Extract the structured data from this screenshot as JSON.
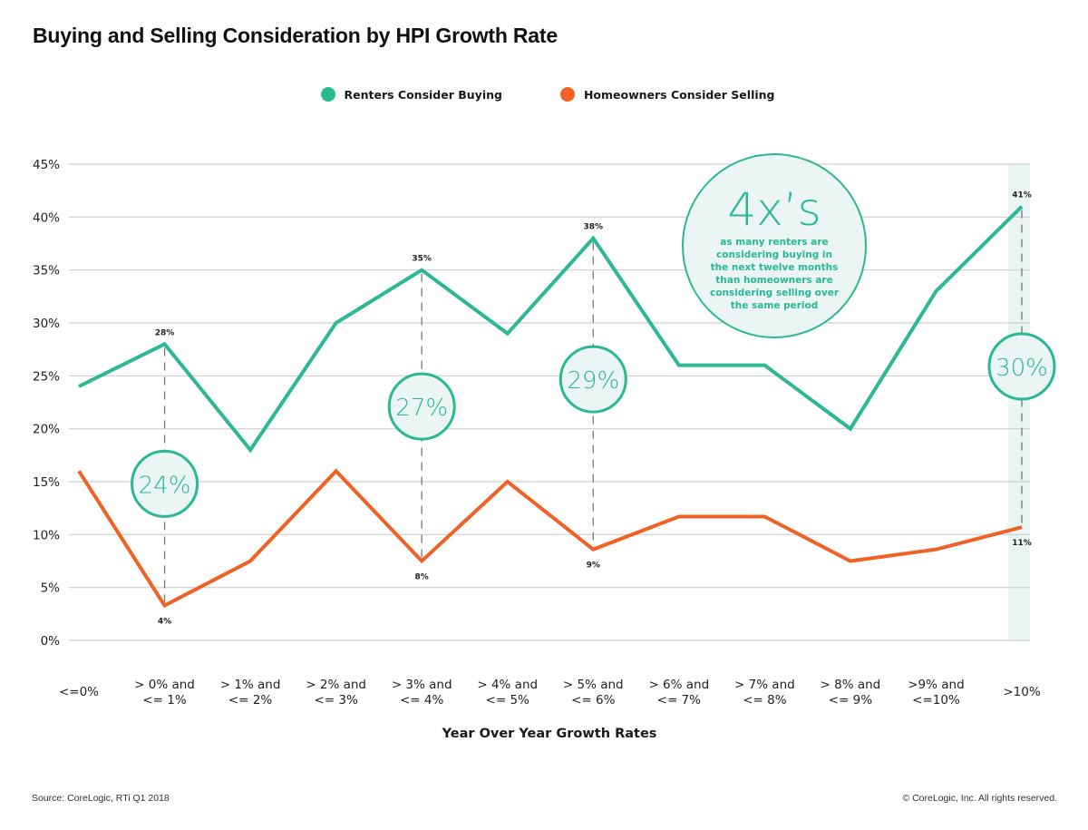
{
  "title": "Buying and Selling Consideration by HPI Growth Rate",
  "legend": [
    {
      "label": "Renters Consider Buying",
      "color": "#2bb893"
    },
    {
      "label": "Homeowners Consider Selling",
      "color": "#f06126"
    }
  ],
  "footer": {
    "source": "Source: CoreLogic, RTi Q1 2018",
    "copyright": "© CoreLogic, Inc. All rights reserved."
  },
  "chart_data": {
    "type": "line",
    "title": "Buying and Selling Consideration by HPI Growth Rate",
    "xlabel": "Year Over Year Growth Rates",
    "ylabel": "",
    "ylim": [
      0,
      45
    ],
    "yticks": [
      "0%",
      "5%",
      "10%",
      "15%",
      "20%",
      "25%",
      "30%",
      "35%",
      "40%",
      "45%"
    ],
    "ytick_values": [
      0,
      5,
      10,
      15,
      20,
      25,
      30,
      35,
      40,
      45
    ],
    "grid": true,
    "legend_position": "top-center",
    "categories": [
      [
        "<=0%"
      ],
      [
        "> 0% and",
        "<= 1%"
      ],
      [
        "> 1% and",
        "<= 2%"
      ],
      [
        "> 2% and",
        "<= 3%"
      ],
      [
        "> 3% and",
        "<= 4%"
      ],
      [
        "> 4% and",
        "<= 5%"
      ],
      [
        "> 5% and",
        "<= 6%"
      ],
      [
        "> 6% and",
        "<= 7%"
      ],
      [
        "> 7% and",
        "<= 8%"
      ],
      [
        "> 8% and",
        "<= 9%"
      ],
      [
        ">9% and",
        "<=10%"
      ],
      [
        ">10%"
      ]
    ],
    "series": [
      {
        "name": "Renters Consider Buying",
        "color": "#2bb893",
        "values": [
          24,
          28,
          18,
          30,
          35,
          29,
          38,
          26,
          26,
          20,
          33,
          41
        ]
      },
      {
        "name": "Homeowners Consider Selling",
        "color": "#f06126",
        "values": [
          16,
          3.3,
          7.5,
          16,
          7.5,
          15,
          8.6,
          11.7,
          11.7,
          7.5,
          8.6,
          10.7
        ]
      }
    ],
    "data_labels": [
      {
        "index": 1,
        "top": "28%",
        "bottom": "4%",
        "gap": "24%"
      },
      {
        "index": 4,
        "top": "35%",
        "bottom": "8%",
        "gap": "27%"
      },
      {
        "index": 6,
        "top": "38%",
        "bottom": "9%",
        "gap": "29%"
      },
      {
        "index": 11,
        "top": "41%",
        "bottom": "11%",
        "gap": "30%"
      }
    ],
    "highlight_index": 11,
    "annotation": {
      "headline": "4x’s",
      "lines": [
        "as many renters are",
        "considering buying in",
        "the next twelve months",
        "than homeowners are",
        "considering selling over",
        "the same period"
      ]
    }
  }
}
